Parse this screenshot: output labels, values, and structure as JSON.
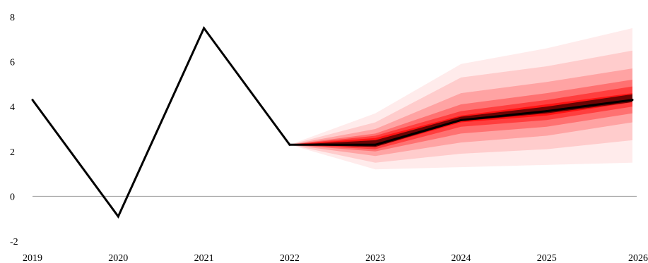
{
  "chart_data": {
    "type": "area",
    "title": "",
    "xlabel": "",
    "ylabel": "",
    "x": [
      2019,
      2020,
      2021,
      2022,
      2023,
      2024,
      2025,
      2026
    ],
    "xlim": [
      2019,
      2026
    ],
    "ylim": [
      -2,
      8
    ],
    "yticks": [
      -2,
      0,
      2,
      4,
      6,
      8
    ],
    "grid": false,
    "zero_line": true,
    "series": [
      {
        "name": "",
        "x": [
          2019,
          2020,
          2021,
          2022,
          2023,
          2024,
          2025,
          2026
        ],
        "values": [
          4.3,
          -0.9,
          7.5,
          2.3,
          2.3,
          3.4,
          3.8,
          4.3
        ]
      }
    ],
    "fan": {
      "x": [
        2022,
        2023,
        2024,
        2025,
        2026
      ],
      "color": "#ff0000",
      "bands": [
        {
          "lower": [
            2.3,
            1.2,
            1.3,
            1.4,
            1.5
          ],
          "upper": [
            2.3,
            3.7,
            5.9,
            6.6,
            7.5
          ]
        },
        {
          "lower": [
            2.3,
            1.5,
            1.9,
            2.1,
            2.5
          ],
          "upper": [
            2.3,
            3.3,
            5.3,
            5.8,
            6.5
          ]
        },
        {
          "lower": [
            2.3,
            1.8,
            2.4,
            2.7,
            3.3
          ],
          "upper": [
            2.3,
            3.0,
            4.6,
            5.1,
            5.7
          ]
        },
        {
          "lower": [
            2.3,
            2.0,
            2.8,
            3.1,
            3.7
          ],
          "upper": [
            2.3,
            2.8,
            4.1,
            4.6,
            5.2
          ]
        },
        {
          "lower": [
            2.3,
            2.1,
            3.1,
            3.4,
            4.0
          ],
          "upper": [
            2.3,
            2.7,
            3.8,
            4.3,
            4.9
          ]
        },
        {
          "lower": [
            2.3,
            2.2,
            3.3,
            3.6,
            4.2
          ],
          "upper": [
            2.3,
            2.6,
            3.6,
            4.1,
            4.6
          ]
        }
      ],
      "band_opacities": [
        0.08,
        0.13,
        0.2,
        0.3,
        0.45,
        0.7
      ],
      "dark_band": {
        "lower": [
          2.3,
          2.2,
          3.35,
          3.7,
          4.2
        ],
        "upper": [
          2.3,
          2.5,
          3.55,
          4.0,
          4.55
        ]
      }
    },
    "line_color": "#000000",
    "axis_color": "#999999"
  }
}
